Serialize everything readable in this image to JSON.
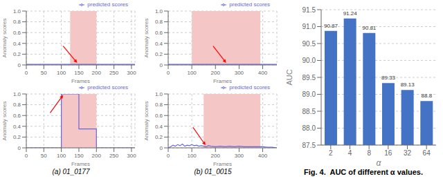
{
  "chart_data": [
    {
      "type": "line",
      "x": [
        0,
        310
      ],
      "series": [
        {
          "name": "predicted scores",
          "color": "#6666dd",
          "values": [
            0.01,
            0.01
          ]
        }
      ],
      "xlabel": "Frames",
      "ylabel": "Anomaly scores",
      "xlim": [
        0,
        310
      ],
      "xticks": [
        0,
        50,
        100,
        150,
        200,
        250,
        300
      ],
      "ylim": [
        0,
        1
      ],
      "yticks": [
        0,
        0.2,
        0.4,
        0.6,
        0.8,
        {
          "value": 1,
          "label": "1.0"
        }
      ],
      "grid": true,
      "legend": "upper right",
      "shade": [
        125,
        200
      ],
      "shade_color": "#f5c6c6",
      "arrows": [
        {
          "from": [
            105,
            0.35
          ],
          "to": [
            145,
            0.04
          ],
          "color": "red"
        }
      ]
    },
    {
      "type": "line",
      "x": [
        0,
        100,
        100,
        150,
        150,
        200,
        200,
        310
      ],
      "series": [
        {
          "name": "predicted scores",
          "color": "#6666dd",
          "values": [
            0.0,
            0.0,
            1.0,
            1.0,
            0.35,
            0.35,
            0.0,
            0.0
          ]
        }
      ],
      "xlabel": "Frames",
      "ylabel": "Anomaly scores",
      "xlim": [
        0,
        310
      ],
      "xticks": [
        0,
        50,
        100,
        150,
        200,
        250,
        300
      ],
      "ylim": [
        0,
        1
      ],
      "yticks": [
        0,
        0.2,
        0.4,
        0.6,
        0.8,
        {
          "value": 1,
          "label": "1.0"
        }
      ],
      "grid": true,
      "legend": "upper right",
      "shade": [
        100,
        200
      ],
      "shade_color": "#f5c6c6",
      "arrows": [
        {
          "from": [
            68,
            0.65
          ],
          "to": [
            105,
            0.98
          ],
          "color": "red"
        }
      ],
      "caption": "(a) 01_0177"
    },
    {
      "type": "line",
      "x": [
        0,
        460
      ],
      "series": [
        {
          "name": "predicted scores",
          "color": "#6666dd",
          "values": [
            0.01,
            0.01
          ]
        }
      ],
      "xlabel": "Frames",
      "ylabel": "Anomaly scores",
      "xlim": [
        0,
        460
      ],
      "xticks": [
        0,
        100,
        200,
        300,
        400
      ],
      "ylim": [
        0,
        1
      ],
      "yticks": [
        0,
        0.2,
        0.4,
        0.6,
        0.8,
        {
          "value": 1,
          "label": "1.0"
        }
      ],
      "grid": true,
      "legend": "upper right",
      "shade": [
        100,
        390
      ],
      "shade_color": "#f5c6c6",
      "arrows": [
        {
          "from": [
            190,
            0.35
          ],
          "to": [
            245,
            0.04
          ],
          "color": "red"
        }
      ]
    },
    {
      "type": "line",
      "x": [
        0,
        10,
        20,
        30,
        40,
        50,
        60,
        70,
        80,
        90,
        100,
        110,
        120,
        130,
        140,
        150,
        160,
        170,
        180,
        200,
        220,
        240,
        260,
        280,
        300,
        320,
        340,
        360,
        380,
        400,
        420,
        440,
        460
      ],
      "series": [
        {
          "name": "predicted scores",
          "color": "#6666dd",
          "values": [
            0.0,
            0.02,
            0.05,
            0.03,
            0.06,
            0.04,
            0.07,
            0.03,
            0.05,
            0.04,
            0.06,
            0.04,
            0.05,
            0.03,
            0.04,
            0.03,
            0.02,
            0.04,
            0.03,
            0.02,
            0.03,
            0.02,
            0.03,
            0.02,
            0.03,
            0.02,
            0.02,
            0.02,
            0.02,
            0.02,
            0.01,
            0.01,
            0.0
          ]
        }
      ],
      "xlabel": "Frames",
      "ylabel": "Anomaly scores",
      "xlim": [
        0,
        460
      ],
      "xticks": [
        0,
        100,
        200,
        300,
        400
      ],
      "ylim": [
        0,
        1
      ],
      "yticks": [
        0,
        0.2,
        0.4,
        0.6,
        0.8,
        {
          "value": 1,
          "label": "1.0"
        }
      ],
      "grid": true,
      "legend": "upper right",
      "shade": [
        150,
        390
      ],
      "shade_color": "#f5c6c6",
      "arrows": [
        {
          "from": [
            105,
            0.38
          ],
          "to": [
            158,
            0.05
          ],
          "color": "red"
        }
      ],
      "caption": "(b) 01_0015"
    },
    {
      "type": "bar",
      "categories": [
        "2",
        "4",
        "8",
        "16",
        "32",
        "64"
      ],
      "values": [
        90.87,
        91.24,
        90.81,
        89.33,
        89.13,
        88.8
      ],
      "color": "#4472C4",
      "xlabel": "α",
      "ylabel": "AUC",
      "ylim": [
        87.5,
        91.5
      ],
      "yticks": [
        87.5,
        {
          "value": 88,
          "label": "88.0"
        },
        88.5,
        {
          "value": 89,
          "label": "89.0"
        },
        89.5,
        {
          "value": 90,
          "label": "90.0"
        },
        90.5,
        {
          "value": 91,
          "label": "91.0"
        },
        91.5
      ],
      "grid": "y",
      "data_labels": true,
      "caption": "Fig. 4.  AUC of different α values."
    }
  ]
}
